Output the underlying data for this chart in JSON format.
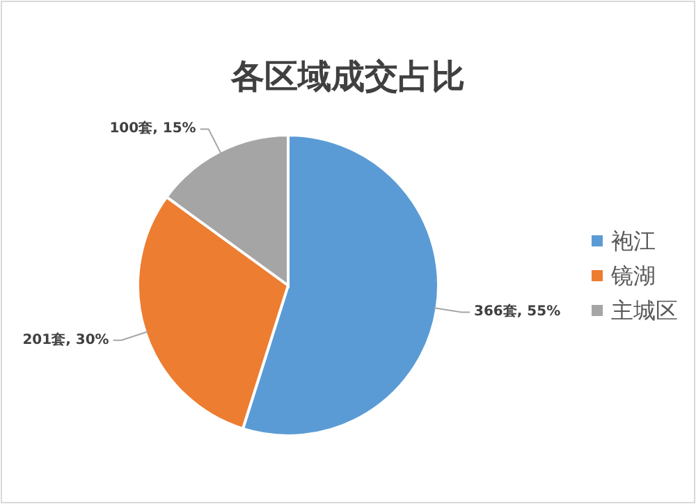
{
  "chart_data": {
    "type": "pie",
    "title": "各区域成交占比",
    "categories": [
      "袍江",
      "镜湖",
      "主城区"
    ],
    "values": [
      366,
      201,
      100
    ],
    "colors": [
      "#5b9bd5",
      "#ed7d31",
      "#a5a5a5"
    ],
    "value_labels": [
      "366套, 55%",
      "201套, 30%",
      "100套, 15%"
    ],
    "legend": "right"
  }
}
